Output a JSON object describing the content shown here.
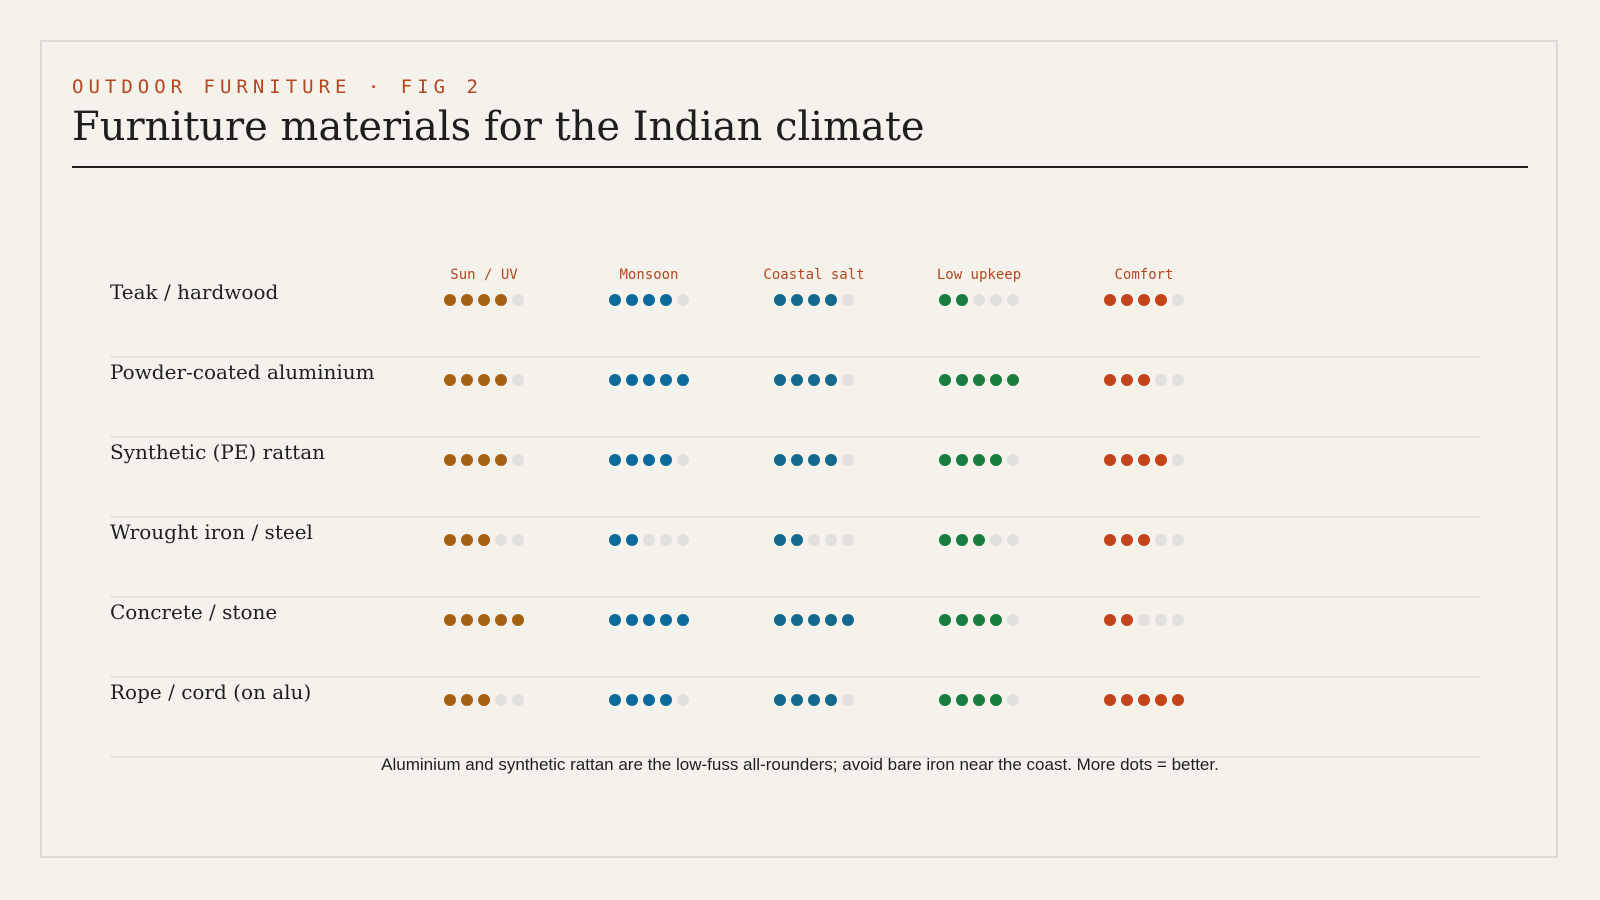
{
  "kicker": "OUTDOOR FURNITURE · FIG 2",
  "title": "Furniture materials for the Indian climate",
  "note": "Aluminium and synthetic rattan are the low-fuss all-rounders; avoid bare iron near the coast. More dots = better.",
  "colors": {
    "background": "#f5f2eb",
    "empty_dot": "#e2e0db",
    "divider": "#e2e0da",
    "accent": "#b5461f"
  },
  "chart_data": {
    "type": "table",
    "scale_max": 5,
    "categories": [
      "Teak / hardwood",
      "Powder-coated aluminium",
      "Synthetic (PE) rattan",
      "Wrought iron / steel",
      "Concrete / stone",
      "Rope / cord (on alu)"
    ],
    "series": [
      {
        "name": "Sun / UV",
        "color": "#a56214",
        "values": [
          4,
          4,
          4,
          3,
          5,
          3
        ]
      },
      {
        "name": "Monsoon",
        "color": "#0c6b9b",
        "values": [
          4,
          5,
          4,
          2,
          5,
          4
        ]
      },
      {
        "name": "Coastal salt",
        "color": "#16698e",
        "values": [
          4,
          4,
          4,
          2,
          5,
          4
        ]
      },
      {
        "name": "Low upkeep",
        "color": "#1a7c3f",
        "values": [
          2,
          5,
          4,
          3,
          4,
          4
        ]
      },
      {
        "name": "Comfort",
        "color": "#c4441a",
        "values": [
          4,
          3,
          4,
          3,
          2,
          5
        ]
      }
    ]
  }
}
